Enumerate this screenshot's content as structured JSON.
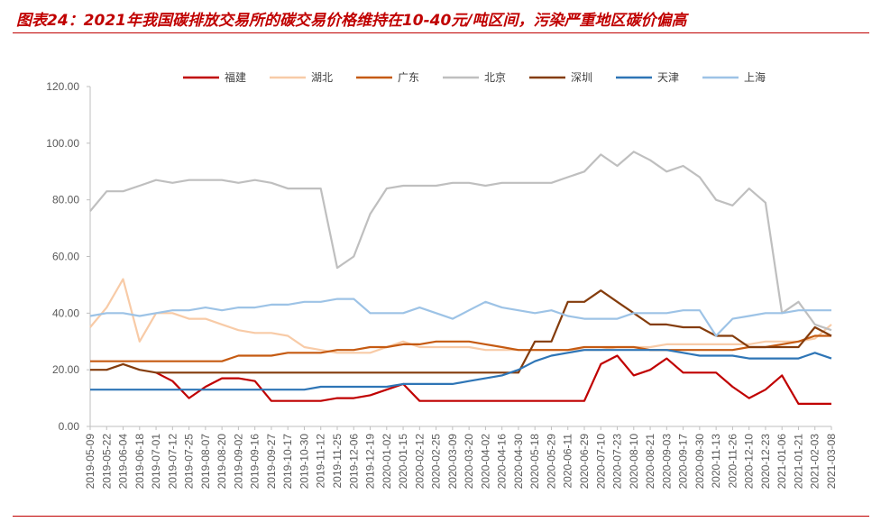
{
  "title": "图表24：2021年我国碳排放交易所的碳交易价格维持在10-40元/吨区间，污染严重地区碳价偏高",
  "chart_data": {
    "type": "line",
    "title": "图表24：2021年我国碳排放交易所的碳交易价格维持在10-40元/吨区间，污染严重地区碳价偏高",
    "xlabel": "",
    "ylabel": "",
    "ylim": [
      0,
      120
    ],
    "yticks": [
      "0.00",
      "20.00",
      "40.00",
      "60.00",
      "80.00",
      "100.00",
      "120.00"
    ],
    "grid": false,
    "legend_position": "top",
    "x_ticks": [
      "2019-05-09",
      "2019-05-22",
      "2019-06-04",
      "2019-06-18",
      "2019-07-01",
      "2019-07-12",
      "2019-07-25",
      "2019-08-07",
      "2019-08-20",
      "2019-09-02",
      "2019-09-16",
      "2019-09-27",
      "2019-10-17",
      "2019-10-30",
      "2019-11-12",
      "2019-11-25",
      "2019-12-06",
      "2019-12-19",
      "2020-01-02",
      "2020-01-15",
      "2020-02-12",
      "2020-02-25",
      "2020-03-09",
      "2020-03-20",
      "2020-04-02",
      "2020-04-16",
      "2020-04-30",
      "2020-05-18",
      "2020-05-29",
      "2020-06-11",
      "2020-06-29",
      "2020-07-10",
      "2020-07-23",
      "2020-08-10",
      "2020-08-21",
      "2020-09-03",
      "2020-09-17",
      "2020-09-30",
      "2020-11-13",
      "2020-11-26",
      "2020-12-10",
      "2020-12-23",
      "2021-01-06",
      "2021-01-21",
      "2021-02-03",
      "2021-03-08"
    ],
    "series": [
      {
        "name": "福建",
        "color": "#c00000",
        "values": [
          null,
          null,
          null,
          null,
          19,
          16,
          10,
          14,
          17,
          17,
          16,
          9,
          9,
          9,
          9,
          10,
          10,
          11,
          13,
          15,
          9,
          9,
          9,
          9,
          9,
          9,
          9,
          9,
          9,
          9,
          9,
          22,
          25,
          18,
          20,
          24,
          19,
          19,
          19,
          14,
          10,
          13,
          18,
          8,
          8,
          8
        ]
      },
      {
        "name": "湖北",
        "color": "#f8cba7",
        "values": [
          35,
          42,
          52,
          30,
          40,
          40,
          38,
          38,
          36,
          34,
          33,
          33,
          32,
          28,
          27,
          26,
          26,
          26,
          28,
          30,
          28,
          28,
          28,
          28,
          27,
          27,
          27,
          27,
          27,
          27,
          27,
          27,
          28,
          28,
          28,
          29,
          29,
          29,
          29,
          29,
          29,
          30,
          30,
          30,
          31,
          36
        ]
      },
      {
        "name": "广东",
        "color": "#c55a11",
        "values": [
          23,
          23,
          23,
          23,
          23,
          23,
          23,
          23,
          23,
          25,
          25,
          25,
          26,
          26,
          26,
          27,
          27,
          28,
          28,
          29,
          29,
          30,
          30,
          30,
          29,
          28,
          27,
          27,
          27,
          27,
          28,
          28,
          28,
          28,
          27,
          27,
          27,
          27,
          27,
          27,
          28,
          28,
          29,
          30,
          32,
          32
        ]
      },
      {
        "name": "北京",
        "color": "#bfbfbf",
        "values": [
          76,
          83,
          83,
          85,
          87,
          86,
          87,
          87,
          87,
          86,
          87,
          86,
          84,
          84,
          84,
          56,
          60,
          75,
          84,
          85,
          85,
          85,
          86,
          86,
          85,
          86,
          86,
          86,
          86,
          88,
          90,
          96,
          92,
          97,
          94,
          90,
          92,
          88,
          80,
          78,
          84,
          79,
          40,
          44,
          36,
          34
        ]
      },
      {
        "name": "深圳",
        "color": "#843c0c",
        "values": [
          20,
          20,
          22,
          20,
          19,
          19,
          19,
          19,
          19,
          19,
          19,
          19,
          19,
          19,
          19,
          19,
          19,
          19,
          19,
          19,
          19,
          19,
          19,
          19,
          19,
          19,
          19,
          30,
          30,
          44,
          44,
          48,
          44,
          40,
          36,
          36,
          35,
          35,
          32,
          32,
          28,
          28,
          28,
          28,
          35,
          32
        ]
      },
      {
        "name": "天津",
        "color": "#2e75b6",
        "values": [
          13,
          13,
          13,
          13,
          13,
          13,
          13,
          13,
          13,
          13,
          13,
          13,
          13,
          13,
          14,
          14,
          14,
          14,
          14,
          15,
          15,
          15,
          15,
          16,
          17,
          18,
          20,
          23,
          25,
          26,
          27,
          27,
          27,
          27,
          27,
          27,
          26,
          25,
          25,
          25,
          24,
          24,
          24,
          24,
          26,
          24
        ]
      },
      {
        "name": "上海",
        "color": "#9dc3e6",
        "values": [
          39,
          40,
          40,
          39,
          40,
          41,
          41,
          42,
          41,
          42,
          42,
          43,
          43,
          44,
          44,
          45,
          45,
          40,
          40,
          40,
          42,
          40,
          38,
          41,
          44,
          42,
          41,
          40,
          41,
          39,
          38,
          38,
          38,
          40,
          40,
          40,
          41,
          41,
          32,
          38,
          39,
          40,
          40,
          41,
          41,
          41
        ]
      }
    ]
  }
}
